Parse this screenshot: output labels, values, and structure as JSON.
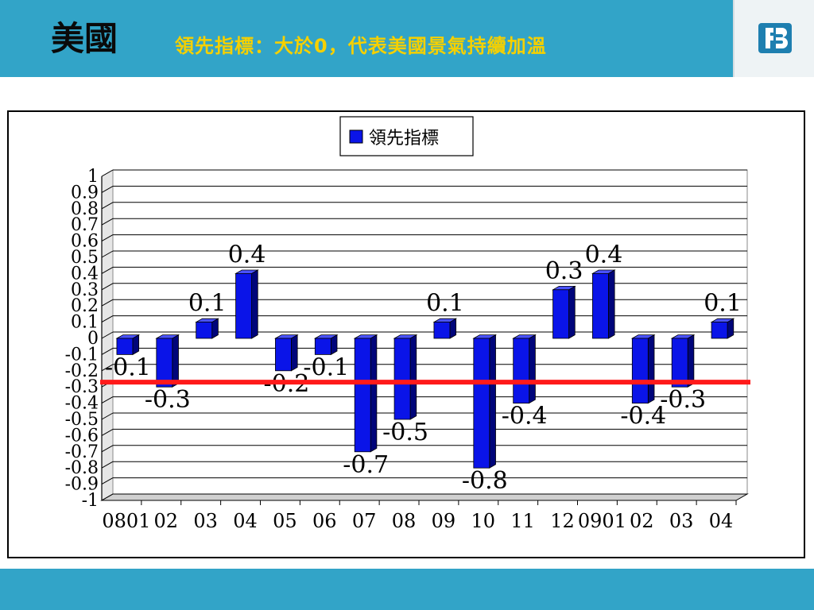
{
  "header": {
    "title": "美國",
    "subtitle": "領先指標：大於0，代表美國景氣持續加溫",
    "logo_icon": "company-logo-icon"
  },
  "colors": {
    "header_bg": "#32a4c8",
    "subtitle_text": "#f5d000",
    "bar_front": "#0a14e8",
    "bar_side": "#00057a",
    "bar_top": "#4a52ff",
    "reference_line": "#ff1a1a"
  },
  "chart_data": {
    "type": "bar",
    "legend": [
      "領先指標"
    ],
    "legend_position": "top-center",
    "categories": [
      "0801",
      "02",
      "03",
      "04",
      "05",
      "06",
      "07",
      "08",
      "09",
      "10",
      "11",
      "12",
      "0901",
      "02",
      "03",
      "04"
    ],
    "series": [
      {
        "name": "領先指標",
        "values": [
          -0.1,
          -0.3,
          0.1,
          0.4,
          -0.2,
          -0.1,
          -0.7,
          -0.5,
          0.1,
          -0.8,
          -0.4,
          0.3,
          0.4,
          -0.4,
          -0.3,
          0.1
        ],
        "labels": [
          "-0.1",
          "-0.3",
          "0.1",
          "0.4",
          "-0.2",
          "-0.1",
          "-0.7",
          "-0.5",
          "0.1",
          "-0.8",
          "-0.4",
          "0.3",
          "0.4",
          "-0.4",
          "-0.3",
          "0.1"
        ]
      }
    ],
    "ylim": [
      -1,
      1
    ],
    "y_ticks": [
      1,
      0.9,
      0.8,
      0.7,
      0.6,
      0.5,
      0.4,
      0.3,
      0.2,
      0.1,
      0,
      -0.1,
      -0.2,
      -0.3,
      -0.4,
      -0.5,
      -0.6,
      -0.7,
      -0.8,
      -0.9,
      -1
    ],
    "y_tick_labels": [
      "1",
      "0.9",
      "0.8",
      "0.7",
      "0.6",
      "0.5",
      "0.4",
      "0.3",
      "0.2",
      "0.1",
      "0",
      "-0.1",
      "-0.2",
      "-0.3",
      "-0.4",
      "-0.5",
      "-0.6",
      "-0.7",
      "-0.8",
      "-0.9",
      "-1"
    ],
    "reference_line_value": -0.27,
    "grid": true,
    "style": "3d-bar"
  }
}
